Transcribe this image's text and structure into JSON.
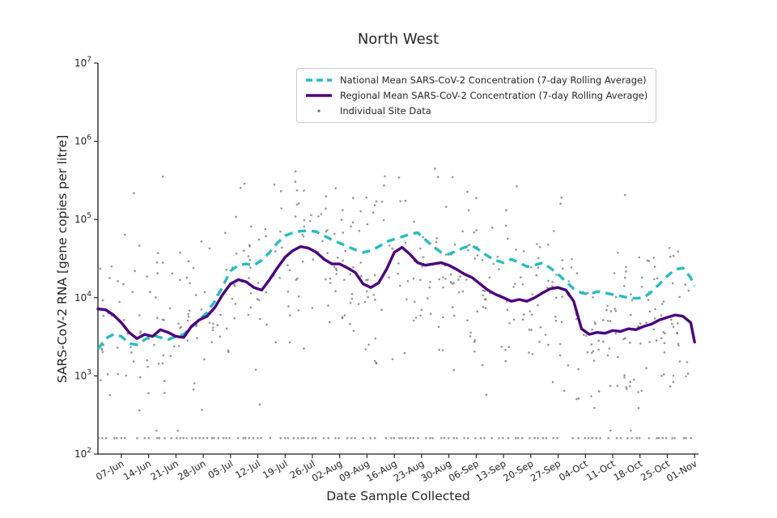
{
  "title": "North West",
  "axes": {
    "x_label": "Date Sample Collected",
    "y_label": "SARS-CoV-2 RNA [gene copies per litre]"
  },
  "legend": {
    "items": [
      {
        "label": "National Mean SARS-CoV-2 Concentration (7-day Rolling Average)",
        "color": "#22bec4",
        "line_style": "dashed"
      },
      {
        "label": "Regional Mean SARS-CoV-2 Concentration (7-day Rolling Average)",
        "color": "#4b0082",
        "line_style": "solid"
      },
      {
        "label": "Individual Site Data",
        "color": "#6a6a6a",
        "line_style": "dot"
      }
    ]
  },
  "chart_data": {
    "type": "line+scatter",
    "title": "North West",
    "xlabel": "Date Sample Collected",
    "ylabel": "SARS-CoV-2 RNA [gene copies per litre]",
    "x_unit": "days since 01-Jun",
    "x_range_days": [
      0,
      154
    ],
    "y_scale": "log10",
    "y_log_range": [
      2,
      7
    ],
    "y_tick_exponents": [
      2,
      3,
      4,
      5,
      6,
      7
    ],
    "y_tick_labels": [
      "10^2",
      "10^3",
      "10^4",
      "10^5",
      "10^6",
      "10^7"
    ],
    "grid": false,
    "legend_position": "upper center",
    "x_ticks": [
      {
        "label": "07-Jun",
        "day": 6
      },
      {
        "label": "14-Jun",
        "day": 13
      },
      {
        "label": "21-Jun",
        "day": 20
      },
      {
        "label": "28-Jun",
        "day": 27
      },
      {
        "label": "05-Jul",
        "day": 34
      },
      {
        "label": "12-Jul",
        "day": 41
      },
      {
        "label": "19-Jul",
        "day": 48
      },
      {
        "label": "26-Jul",
        "day": 55
      },
      {
        "label": "02-Aug",
        "day": 62
      },
      {
        "label": "09-Aug",
        "day": 69
      },
      {
        "label": "16-Aug",
        "day": 76
      },
      {
        "label": "23-Aug",
        "day": 83
      },
      {
        "label": "30-Aug",
        "day": 90
      },
      {
        "label": "06-Sep",
        "day": 97
      },
      {
        "label": "13-Sep",
        "day": 104
      },
      {
        "label": "20-Sep",
        "day": 111
      },
      {
        "label": "27-Sep",
        "day": 118
      },
      {
        "label": "04-Oct",
        "day": 125
      },
      {
        "label": "11-Oct",
        "day": 132
      },
      {
        "label": "18-Oct",
        "day": 139
      },
      {
        "label": "25-Oct",
        "day": 146
      },
      {
        "label": "01-Nov",
        "day": 153
      }
    ],
    "series": [
      {
        "name": "National Mean SARS-CoV-2 Concentration (7-day Rolling Average)",
        "color": "#22bec4",
        "dash": "10 7",
        "width": 3.4,
        "x": [
          0,
          2,
          4,
          6,
          8,
          10,
          12,
          14,
          16,
          18,
          20,
          22,
          24,
          26,
          28,
          30,
          32,
          34,
          36,
          38,
          40,
          42,
          44,
          46,
          48,
          50,
          52,
          54,
          56,
          58,
          60,
          62,
          64,
          66,
          68,
          70,
          72,
          74,
          76,
          78,
          80,
          82,
          84,
          86,
          88,
          90,
          92,
          94,
          96,
          98,
          100,
          102,
          104,
          106,
          108,
          110,
          112,
          114,
          116,
          118,
          120,
          122,
          124,
          126,
          128,
          130,
          132,
          134,
          136,
          138,
          140,
          142,
          144,
          146,
          148,
          150,
          152,
          153
        ],
        "y": [
          2200,
          3000,
          3400,
          3200,
          2600,
          2500,
          2900,
          3300,
          3100,
          2900,
          3200,
          3400,
          4200,
          5200,
          6500,
          9000,
          14000,
          22000,
          26000,
          27000,
          26000,
          30000,
          38000,
          50000,
          62000,
          68000,
          71000,
          72000,
          70000,
          62000,
          55000,
          50000,
          45000,
          41000,
          38000,
          40000,
          45000,
          52000,
          56000,
          60000,
          65000,
          68000,
          55000,
          45000,
          38000,
          36000,
          40000,
          44000,
          46000,
          40000,
          34000,
          30000,
          28000,
          31000,
          28000,
          25000,
          26000,
          28000,
          24000,
          20000,
          16000,
          13000,
          11500,
          11000,
          12000,
          11500,
          11000,
          10500,
          10000,
          9800,
          10000,
          12000,
          15000,
          19000,
          23000,
          24000,
          18000,
          14000
        ]
      },
      {
        "name": "Regional Mean SARS-CoV-2 Concentration (7-day Rolling Average)",
        "color": "#4b0082",
        "dash": null,
        "width": 3.4,
        "x": [
          0,
          2,
          4,
          6,
          8,
          10,
          12,
          14,
          16,
          18,
          20,
          22,
          24,
          26,
          28,
          30,
          32,
          34,
          36,
          38,
          40,
          42,
          44,
          46,
          48,
          50,
          52,
          54,
          56,
          58,
          60,
          62,
          64,
          66,
          68,
          70,
          72,
          74,
          76,
          78,
          80,
          82,
          84,
          86,
          88,
          90,
          92,
          94,
          96,
          98,
          100,
          102,
          104,
          106,
          108,
          110,
          112,
          114,
          116,
          118,
          120,
          122,
          124,
          126,
          128,
          130,
          132,
          134,
          136,
          138,
          140,
          142,
          144,
          146,
          148,
          150,
          152,
          153
        ],
        "y": [
          7200,
          7000,
          6000,
          4800,
          3600,
          3000,
          3400,
          3200,
          3900,
          3600,
          3200,
          3100,
          4300,
          5200,
          5800,
          7500,
          11000,
          15000,
          17000,
          16000,
          13500,
          12500,
          17000,
          24000,
          33000,
          40000,
          45000,
          43000,
          38000,
          31000,
          27000,
          27000,
          24000,
          21000,
          15000,
          13500,
          15500,
          23000,
          38000,
          44000,
          36000,
          28000,
          26000,
          27000,
          28000,
          26000,
          23000,
          20000,
          18000,
          15000,
          12500,
          11000,
          10000,
          9000,
          9500,
          9000,
          10000,
          11500,
          13000,
          13500,
          12500,
          9000,
          4000,
          3400,
          3600,
          3500,
          3800,
          3700,
          4000,
          3900,
          4300,
          4600,
          5200,
          5600,
          6000,
          5800,
          4800,
          2700
        ]
      }
    ],
    "scatter": {
      "name": "Individual Site Data",
      "color": "#6a6a6a",
      "marker_radius_px": 1.3,
      "opacity": 0.7,
      "seed": 42,
      "date_step_days": 2,
      "points_per_date_min": 4,
      "points_per_date_max": 10,
      "spread_log10_sigma": 0.55,
      "outlier_prob": 0.05,
      "outlier_log10_range": [
        4.7,
        5.6
      ],
      "clamp_log10": [
        2.3,
        5.65
      ],
      "limit_of_detection_value": 160,
      "lod_row_prob": 0.8
    }
  }
}
